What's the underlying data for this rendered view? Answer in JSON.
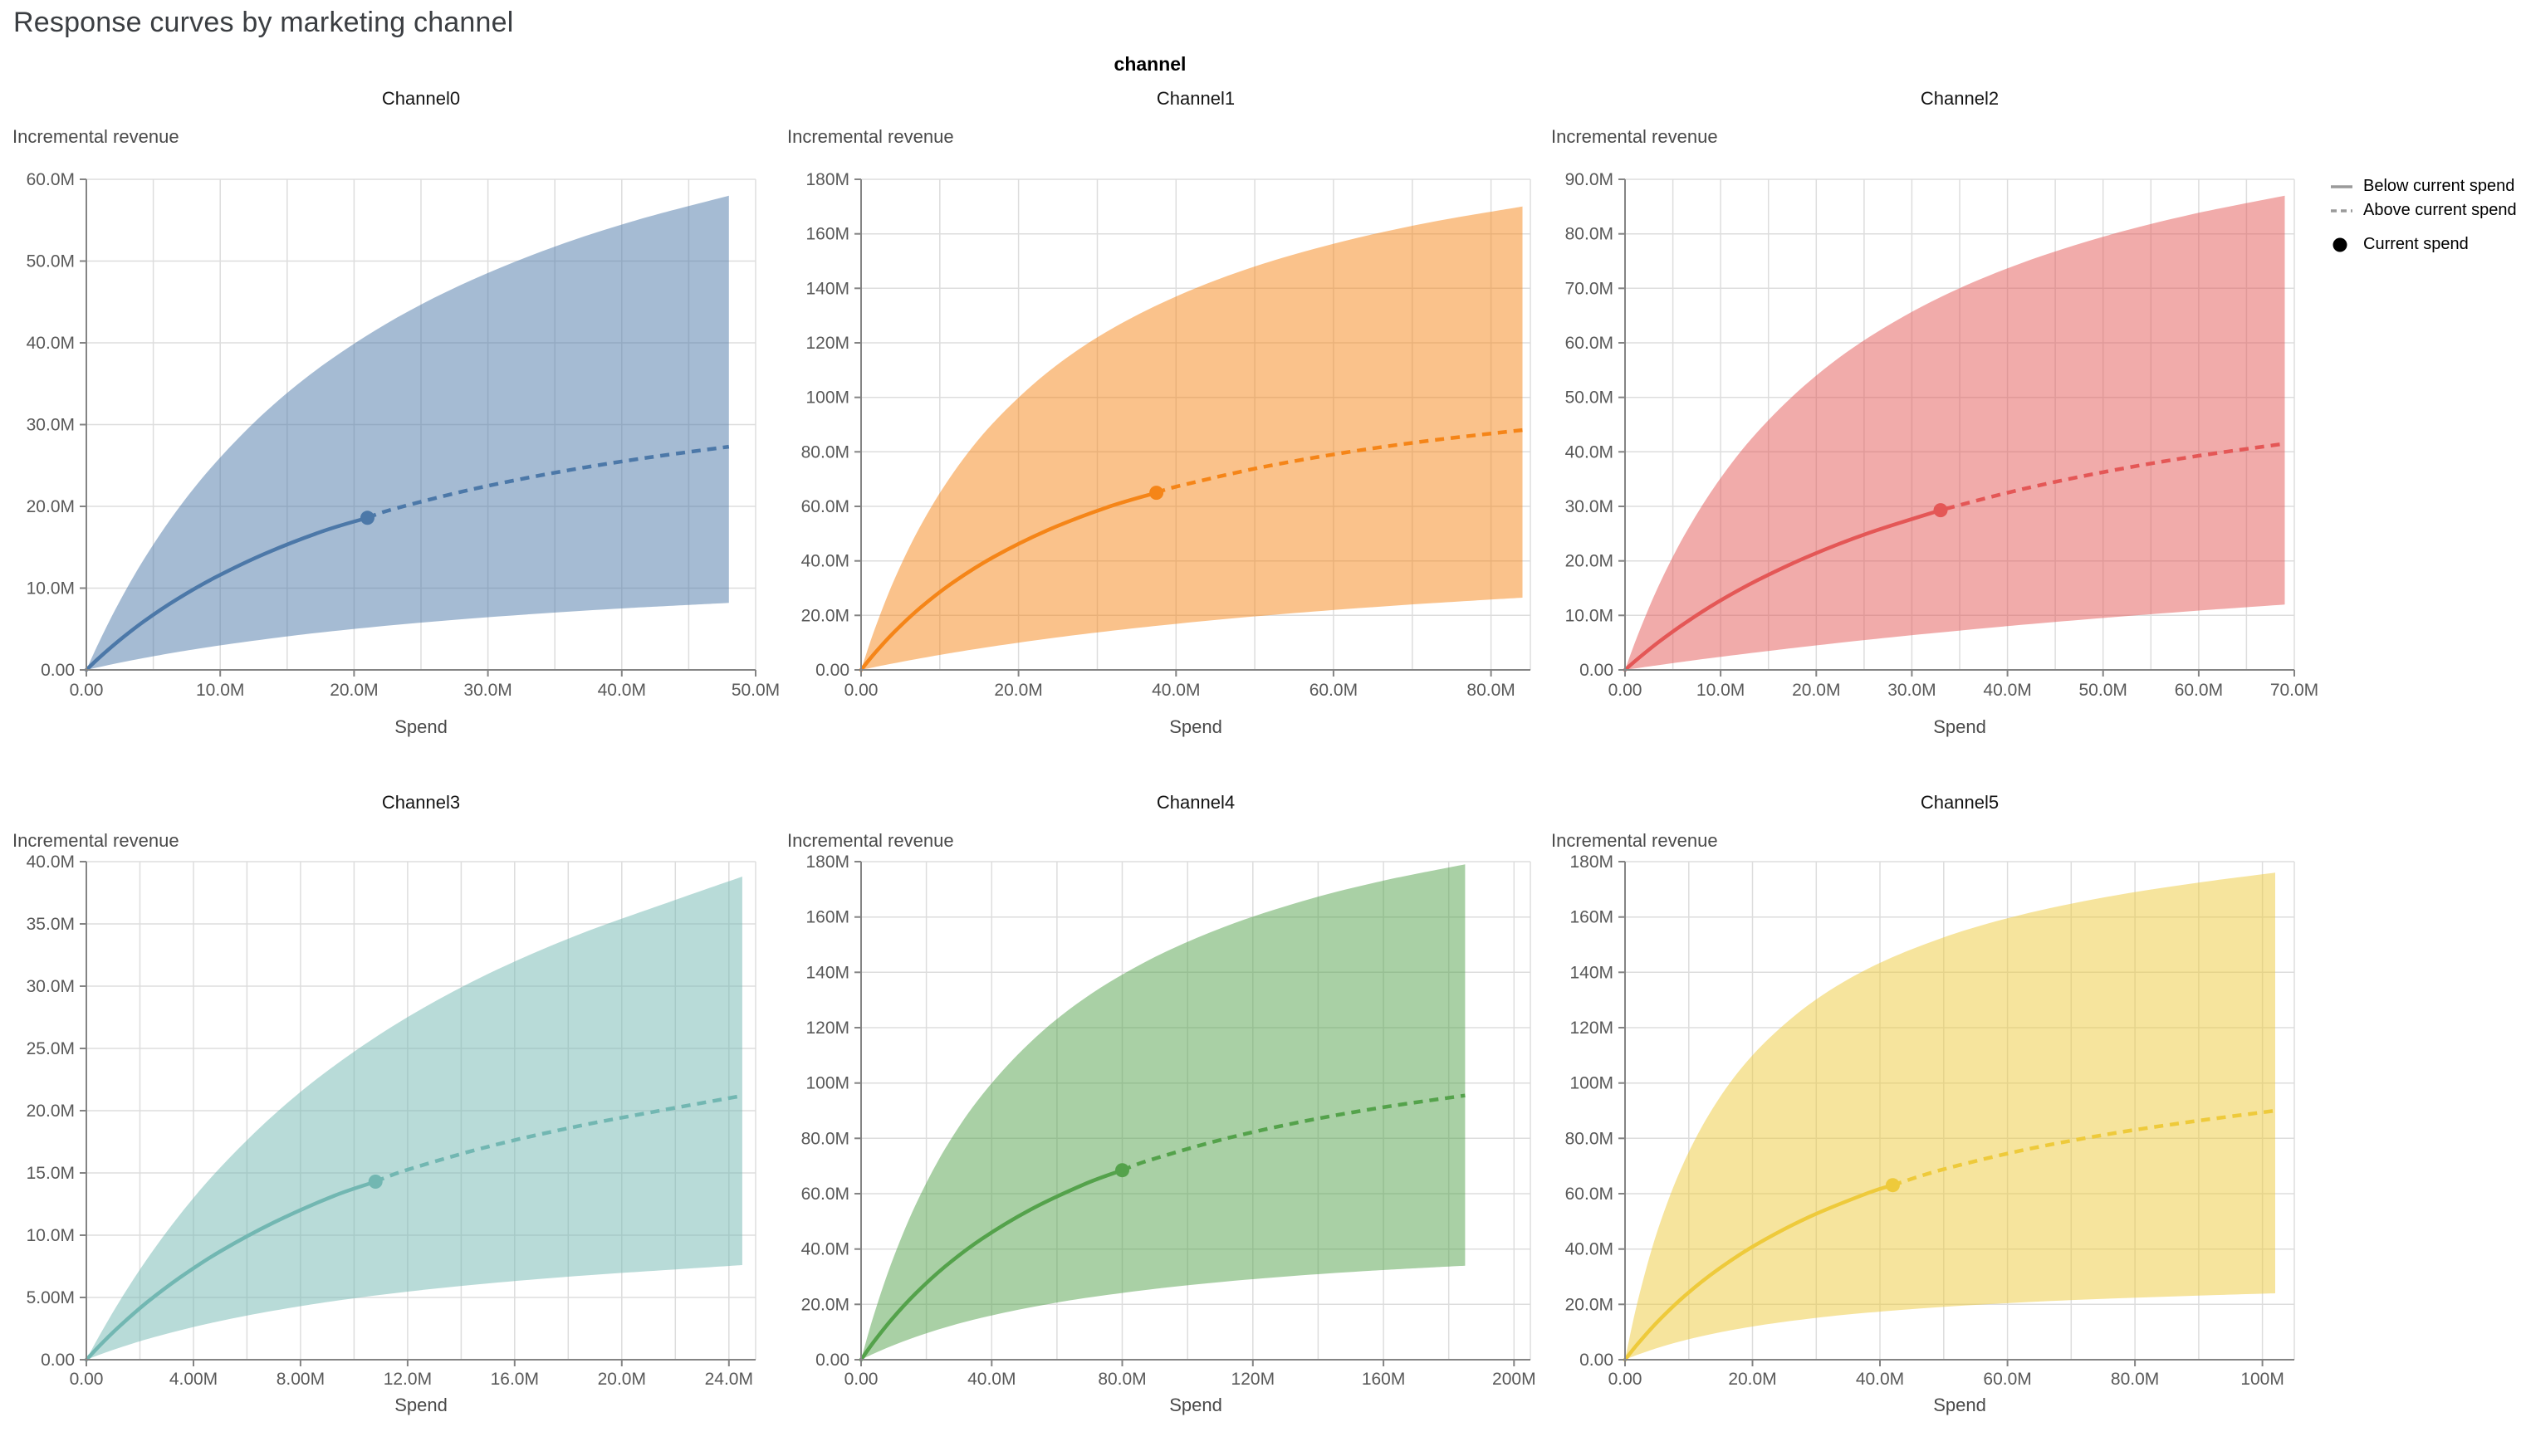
{
  "page": {
    "title": "Response curves by marketing channel"
  },
  "facet": {
    "header": "channel"
  },
  "legend": {
    "line_color": "#9a9a9a",
    "dot_color": "#000000",
    "items": [
      {
        "label": "Below current spend",
        "symbol": "solid-line"
      },
      {
        "label": "Above current spend",
        "symbol": "dashed-line"
      },
      {
        "label": "Current spend",
        "symbol": "filled-circle"
      }
    ]
  },
  "chart_data": {
    "type": "line",
    "subtype": "faceted-response-curves-with-uncertainty-band",
    "facet_field": "channel",
    "grid": true,
    "legend_position": "top-right",
    "units": "millions",
    "x_axis_title": "Spend",
    "y_axis_title": "Incremental revenue",
    "channels": [
      {
        "title": "Channel0",
        "color": "#4c78a8",
        "x_axis_title": "Spend",
        "y_axis_title": "Incremental revenue",
        "x_domain": [
          0,
          50
        ],
        "x_grid_step": 5,
        "x_ticks": {
          "values": [
            0,
            10,
            20,
            30,
            40,
            50
          ],
          "labels": [
            "0.00",
            "10.0M",
            "20.0M",
            "30.0M",
            "40.0M",
            "50.0M"
          ]
        },
        "y_domain": [
          0,
          60
        ],
        "y_ticks": {
          "values": [
            0,
            10,
            20,
            30,
            40,
            50,
            60
          ],
          "labels": [
            "0.00",
            "10.0M",
            "20.0M",
            "30.0M",
            "40.0M",
            "50.0M",
            "60.0M"
          ]
        },
        "x": [
          0,
          0.96,
          2.4,
          4.32,
          6.72,
          9.6,
          13.44,
          17.76,
          23.04,
          28.8,
          35.04,
          41.28,
          48
        ],
        "mean": [
          0,
          1.49,
          3.53,
          5.96,
          8.59,
          11.29,
          14.28,
          17.02,
          19.72,
          22.08,
          24.13,
          25.81,
          27.3
        ],
        "upper": [
          0,
          3.44,
          8.11,
          13.57,
          19.4,
          25.26,
          31.64,
          37.38,
          42.93,
          47.69,
          51.79,
          55.09,
          58.0
        ],
        "lower": [
          0,
          0.35,
          0.85,
          1.46,
          2.16,
          2.9,
          3.77,
          4.62,
          5.49,
          6.29,
          7.02,
          7.63,
          8.2
        ],
        "current_spend": {
          "x": 21,
          "y": 18.6
        }
      },
      {
        "title": "Channel1",
        "color": "#f58518",
        "x_axis_title": "Spend",
        "y_axis_title": "Incremental revenue",
        "x_domain": [
          0,
          85
        ],
        "x_grid_step": 10,
        "x_ticks": {
          "values": [
            0,
            20,
            40,
            60,
            80
          ],
          "labels": [
            "0.00",
            "20.0M",
            "40.0M",
            "60.0M",
            "80.0M"
          ]
        },
        "y_domain": [
          0,
          180
        ],
        "y_ticks": {
          "values": [
            0,
            20,
            40,
            60,
            80,
            100,
            120,
            140,
            160,
            180
          ],
          "labels": [
            "0.00",
            "20.0M",
            "40.0M",
            "60.0M",
            "80.0M",
            "100M",
            "120M",
            "140M",
            "160M",
            "180M"
          ]
        },
        "x": [
          0,
          1.68,
          4.2,
          7.56,
          11.76,
          16.8,
          23.52,
          31.08,
          40.32,
          50.4,
          61.32,
          72.24,
          84
        ],
        "mean": [
          0,
          5.95,
          13.87,
          22.89,
          32.25,
          41.4,
          51.05,
          59.49,
          67.43,
          74.08,
          79.68,
          84.13,
          88.0
        ],
        "upper": [
          0,
          14.51,
          32.97,
          52.93,
          72.53,
          90.67,
          108.8,
          123.9,
          137.4,
          148.4,
          157.3,
          164.2,
          170.0
        ],
        "lower": [
          0,
          1.01,
          2.45,
          4.26,
          6.36,
          8.65,
          11.39,
          14.11,
          17.0,
          19.72,
          22.25,
          24.44,
          26.5
        ],
        "current_spend": {
          "x": 37.5,
          "y": 65.0
        }
      },
      {
        "title": "Channel2",
        "color": "#e45756",
        "x_axis_title": "Spend",
        "y_axis_title": "Incremental revenue",
        "x_domain": [
          0,
          70
        ],
        "x_grid_step": 5,
        "x_ticks": {
          "values": [
            0,
            10,
            20,
            30,
            40,
            50,
            60,
            70
          ],
          "labels": [
            "0.00",
            "10.0M",
            "20.0M",
            "30.0M",
            "40.0M",
            "50.0M",
            "60.0M",
            "70.0M"
          ]
        },
        "y_domain": [
          0,
          90
        ],
        "y_ticks": {
          "values": [
            0,
            10,
            20,
            30,
            40,
            50,
            60,
            70,
            80,
            90
          ],
          "labels": [
            "0.00",
            "10.0M",
            "20.0M",
            "30.0M",
            "40.0M",
            "50.0M",
            "60.0M",
            "70.0M",
            "80.0M",
            "90.0M"
          ]
        },
        "x": [
          0,
          1.38,
          3.45,
          6.21,
          9.66,
          13.8,
          19.32,
          25.53,
          33.12,
          41.4,
          50.37,
          59.34,
          69
        ],
        "mean": [
          0,
          2.1,
          5.02,
          8.52,
          12.39,
          16.4,
          20.93,
          25.14,
          29.36,
          33.09,
          36.39,
          39.11,
          41.5
        ],
        "upper": [
          0,
          6.58,
          15.16,
          24.7,
          34.35,
          43.55,
          53.0,
          61.06,
          68.48,
          74.59,
          79.64,
          83.6,
          87.0
        ],
        "lower": [
          0,
          0.35,
          0.86,
          1.52,
          2.32,
          3.22,
          4.36,
          5.56,
          6.9,
          8.25,
          9.58,
          10.79,
          12.0
        ],
        "current_spend": {
          "x": 33,
          "y": 29.3
        }
      },
      {
        "title": "Channel3",
        "color": "#72b7b2",
        "x_axis_title": "Spend",
        "y_axis_title": "Incremental revenue",
        "x_domain": [
          0,
          25
        ],
        "x_grid_step": 2,
        "x_ticks": {
          "values": [
            0,
            4,
            8,
            12,
            16,
            20,
            24
          ],
          "labels": [
            "0.00",
            "4.00M",
            "8.00M",
            "12.0M",
            "16.0M",
            "20.0M",
            "24.0M"
          ]
        },
        "y_domain": [
          0,
          40
        ],
        "y_ticks": {
          "values": [
            0,
            5,
            10,
            15,
            20,
            25,
            30,
            35,
            40
          ],
          "labels": [
            "0.00",
            "5.00M",
            "10.0M",
            "15.0M",
            "20.0M",
            "25.0M",
            "30.0M",
            "35.0M",
            "40.0M"
          ]
        },
        "x": [
          0,
          0.5,
          1.25,
          2.25,
          3.5,
          5,
          7,
          9.25,
          12,
          15,
          18.25,
          21.5,
          24.5
        ],
        "mean": [
          0,
          1.14,
          2.71,
          4.58,
          6.61,
          8.7,
          11.02,
          13.16,
          15.26,
          17.11,
          18.71,
          20.03,
          21.2
        ],
        "upper": [
          0,
          1.98,
          4.73,
          8.03,
          11.66,
          15.43,
          19.66,
          23.59,
          27.51,
          30.98,
          34.03,
          36.55,
          38.8
        ],
        "lower": [
          0,
          0.41,
          0.97,
          1.64,
          2.36,
          3.11,
          3.94,
          4.71,
          5.47,
          6.13,
          6.71,
          7.18,
          7.6
        ],
        "current_spend": {
          "x": 10.8,
          "y": 14.3
        }
      },
      {
        "title": "Channel4",
        "color": "#54a24b",
        "x_axis_title": "Spend",
        "y_axis_title": "Incremental revenue",
        "x_domain": [
          0,
          205
        ],
        "x_grid_step": 20,
        "x_ticks": {
          "values": [
            0,
            40,
            80,
            120,
            160,
            200
          ],
          "labels": [
            "0.00",
            "40.0M",
            "80.0M",
            "120M",
            "160M",
            "200M"
          ]
        },
        "y_domain": [
          0,
          180
        ],
        "y_ticks": {
          "values": [
            0,
            20,
            40,
            60,
            80,
            100,
            120,
            140,
            160,
            180
          ],
          "labels": [
            "0.00",
            "20.0M",
            "40.0M",
            "60.0M",
            "80.0M",
            "100M",
            "120M",
            "140M",
            "160M",
            "180M"
          ]
        },
        "x": [
          0,
          3.7,
          9.25,
          16.65,
          25.9,
          37,
          51.8,
          68.45,
          88.8,
          111,
          135.05,
          159.1,
          185
        ],
        "mean": [
          0,
          6.15,
          14.4,
          23.89,
          33.85,
          43.68,
          54.18,
          63.45,
          72.27,
          79.72,
          86.04,
          91.08,
          95.5
        ],
        "upper": [
          0,
          15.33,
          34.82,
          55.88,
          76.55,
          95.64,
          114.7,
          130.6,
          144.8,
          156.3,
          165.7,
          172.9,
          179.0
        ],
        "lower": [
          0,
          2.1,
          4.93,
          8.22,
          11.7,
          15.17,
          18.91,
          22.25,
          25.44,
          28.17,
          30.5,
          32.36,
          34.0
        ],
        "current_spend": {
          "x": 80,
          "y": 68.5
        }
      },
      {
        "title": "Channel5",
        "color": "#eeca3b",
        "x_axis_title": "Spend",
        "y_axis_title": "Incremental revenue",
        "x_domain": [
          0,
          105
        ],
        "x_grid_step": 10,
        "x_ticks": {
          "values": [
            0,
            20,
            40,
            60,
            80,
            100
          ],
          "labels": [
            "0.00",
            "20.0M",
            "40.0M",
            "60.0M",
            "80.0M",
            "100M"
          ]
        },
        "y_domain": [
          0,
          180
        ],
        "y_ticks": {
          "values": [
            0,
            20,
            40,
            60,
            80,
            100,
            120,
            140,
            160,
            180
          ],
          "labels": [
            "0.00",
            "20.0M",
            "40.0M",
            "60.0M",
            "80.0M",
            "100M",
            "120M",
            "140M",
            "160M",
            "180M"
          ]
        },
        "x": [
          0,
          2.06,
          5.15,
          9.27,
          14.42,
          20.6,
          28.84,
          38.11,
          49.44,
          61.8,
          75.19,
          88.58,
          102
        ],
        "mean": [
          0,
          5.91,
          13.82,
          22.88,
          32.34,
          41.65,
          51.55,
          60.24,
          68.48,
          75.41,
          81.28,
          85.94,
          90.0
        ],
        "upper": [
          0,
          21.77,
          46.98,
          71.51,
          93.24,
          111.5,
          128.3,
          141.3,
          152.2,
          160.6,
          167.1,
          172.0,
          176.0
        ],
        "lower": [
          0,
          1.87,
          4.3,
          6.98,
          9.67,
          12.21,
          14.81,
          17.01,
          19.02,
          20.67,
          22.02,
          23.08,
          24.0
        ],
        "current_spend": {
          "x": 42,
          "y": 63.1
        }
      }
    ],
    "style": {
      "band_opacity": 0.5,
      "grid_color": "#dddddd",
      "axis_domain_color": "#848484",
      "tick_label_color": "#595959"
    }
  }
}
